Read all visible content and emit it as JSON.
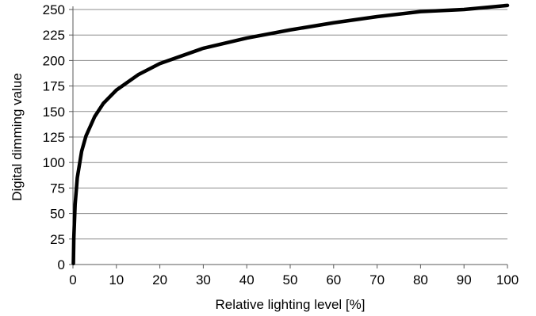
{
  "chart_data": {
    "type": "line",
    "title": "",
    "xlabel": "Relative lighting level [%]",
    "ylabel": "Digital dimming value",
    "xlim": [
      0,
      100
    ],
    "ylim": [
      0,
      250
    ],
    "x_ticks": [
      0,
      10,
      20,
      30,
      40,
      50,
      60,
      70,
      80,
      90,
      100
    ],
    "y_ticks": [
      0,
      25,
      50,
      75,
      100,
      125,
      150,
      175,
      200,
      225,
      250
    ],
    "grid": {
      "horizontal": true,
      "vertical": false
    },
    "legend": "none",
    "series": [
      {
        "color": "#000000",
        "x": [
          0.1,
          0.2,
          0.5,
          1,
          2,
          3,
          5,
          7,
          10,
          15,
          20,
          30,
          40,
          50,
          60,
          70,
          80,
          90,
          100
        ],
        "y": [
          1,
          26,
          59,
          85,
          111,
          126,
          145,
          158,
          171,
          186,
          197,
          212,
          222,
          230,
          237,
          243,
          248,
          250,
          254
        ]
      }
    ]
  }
}
